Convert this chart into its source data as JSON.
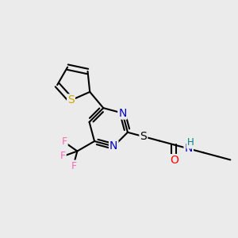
{
  "background_color": "#ebebeb",
  "atom_colors": {
    "N": "#0000cc",
    "S_th": "#ccaa00",
    "S_chain": "#000000",
    "O": "#ff0000",
    "F": "#ff69b4",
    "H": "#008080"
  },
  "bond_color": "#000000",
  "bond_width": 1.5,
  "font_size": 9,
  "fig_size": [
    3.0,
    3.0
  ],
  "dpi": 100
}
